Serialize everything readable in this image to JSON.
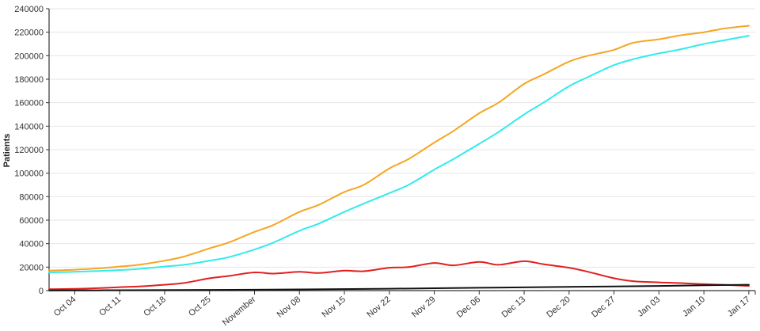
{
  "chart_data": {
    "type": "line",
    "title": "",
    "xlabel": "",
    "ylabel": "Patients",
    "ylim": [
      0,
      240000
    ],
    "y_ticks": [
      0,
      20000,
      40000,
      60000,
      80000,
      100000,
      120000,
      140000,
      160000,
      180000,
      200000,
      220000,
      240000
    ],
    "y_tick_labels": [
      "0",
      "20000",
      "40000",
      "60000",
      "80000",
      "100000",
      "120000",
      "140000",
      "160000",
      "180000",
      "200000",
      "220000",
      "240000"
    ],
    "x_range": [
      "2020-09-30",
      "2021-01-18"
    ],
    "x_ticks": [
      {
        "date": "2020-10-04",
        "label": "Oct 04"
      },
      {
        "date": "2020-10-11",
        "label": "Oct 11"
      },
      {
        "date": "2020-10-18",
        "label": "Oct 18"
      },
      {
        "date": "2020-10-25",
        "label": "Oct 25"
      },
      {
        "date": "2020-11-01",
        "label": "November"
      },
      {
        "date": "2020-11-08",
        "label": "Nov 08"
      },
      {
        "date": "2020-11-15",
        "label": "Nov 15"
      },
      {
        "date": "2020-11-22",
        "label": "Nov 22"
      },
      {
        "date": "2020-11-29",
        "label": "Nov 29"
      },
      {
        "date": "2020-12-06",
        "label": "Dec 06"
      },
      {
        "date": "2020-12-13",
        "label": "Dec 13"
      },
      {
        "date": "2020-12-20",
        "label": "Dec 20"
      },
      {
        "date": "2020-12-27",
        "label": "Dec 27"
      },
      {
        "date": "2021-01-03",
        "label": "Jan 03"
      },
      {
        "date": "2021-01-10",
        "label": "Jan 10"
      },
      {
        "date": "2021-01-17",
        "label": "Jan 17"
      }
    ],
    "grid": true,
    "series": [
      {
        "color": "#f5a623",
        "points": [
          [
            "2020-09-30",
            17000
          ],
          [
            "2020-10-04",
            17800
          ],
          [
            "2020-10-08",
            19000
          ],
          [
            "2020-10-11",
            20500
          ],
          [
            "2020-10-14",
            22000
          ],
          [
            "2020-10-18",
            25500
          ],
          [
            "2020-10-21",
            29000
          ],
          [
            "2020-10-25",
            36000
          ],
          [
            "2020-10-28",
            41000
          ],
          [
            "2020-11-01",
            50000
          ],
          [
            "2020-11-04",
            56000
          ],
          [
            "2020-11-08",
            67000
          ],
          [
            "2020-11-11",
            73000
          ],
          [
            "2020-11-15",
            84000
          ],
          [
            "2020-11-18",
            90000
          ],
          [
            "2020-11-22",
            104000
          ],
          [
            "2020-11-25",
            112000
          ],
          [
            "2020-11-29",
            126000
          ],
          [
            "2020-12-02",
            136000
          ],
          [
            "2020-12-06",
            151000
          ],
          [
            "2020-12-09",
            160000
          ],
          [
            "2020-12-13",
            176000
          ],
          [
            "2020-12-16",
            184000
          ],
          [
            "2020-12-20",
            195000
          ],
          [
            "2020-12-23",
            200000
          ],
          [
            "2020-12-27",
            205000
          ],
          [
            "2020-12-30",
            211000
          ],
          [
            "2021-01-03",
            214000
          ],
          [
            "2021-01-06",
            217000
          ],
          [
            "2021-01-10",
            220000
          ],
          [
            "2021-01-13",
            223000
          ],
          [
            "2021-01-17",
            225500
          ]
        ]
      },
      {
        "color": "#33ebeb",
        "points": [
          [
            "2020-09-30",
            15500
          ],
          [
            "2020-10-04",
            16000
          ],
          [
            "2020-10-08",
            16800
          ],
          [
            "2020-10-11",
            17500
          ],
          [
            "2020-10-14",
            18500
          ],
          [
            "2020-10-18",
            20500
          ],
          [
            "2020-10-21",
            22000
          ],
          [
            "2020-10-25",
            25500
          ],
          [
            "2020-10-28",
            28500
          ],
          [
            "2020-11-01",
            35000
          ],
          [
            "2020-11-04",
            41000
          ],
          [
            "2020-11-08",
            51000
          ],
          [
            "2020-11-11",
            57000
          ],
          [
            "2020-11-15",
            67000
          ],
          [
            "2020-11-18",
            74000
          ],
          [
            "2020-11-22",
            83000
          ],
          [
            "2020-11-25",
            90000
          ],
          [
            "2020-11-29",
            103000
          ],
          [
            "2020-12-02",
            112000
          ],
          [
            "2020-12-06",
            125000
          ],
          [
            "2020-12-09",
            135000
          ],
          [
            "2020-12-13",
            150000
          ],
          [
            "2020-12-16",
            160000
          ],
          [
            "2020-12-20",
            174000
          ],
          [
            "2020-12-23",
            182000
          ],
          [
            "2020-12-27",
            192000
          ],
          [
            "2020-12-30",
            197000
          ],
          [
            "2021-01-03",
            202000
          ],
          [
            "2021-01-06",
            205000
          ],
          [
            "2021-01-10",
            210000
          ],
          [
            "2021-01-13",
            213000
          ],
          [
            "2021-01-17",
            217000
          ]
        ]
      },
      {
        "color": "#e02020",
        "points": [
          [
            "2020-09-30",
            1200
          ],
          [
            "2020-10-04",
            1500
          ],
          [
            "2020-10-08",
            2200
          ],
          [
            "2020-10-11",
            3000
          ],
          [
            "2020-10-14",
            3500
          ],
          [
            "2020-10-18",
            5000
          ],
          [
            "2020-10-21",
            6500
          ],
          [
            "2020-10-25",
            10500
          ],
          [
            "2020-10-28",
            12500
          ],
          [
            "2020-11-01",
            15500
          ],
          [
            "2020-11-04",
            14500
          ],
          [
            "2020-11-08",
            16000
          ],
          [
            "2020-11-11",
            15000
          ],
          [
            "2020-11-15",
            17000
          ],
          [
            "2020-11-18",
            16500
          ],
          [
            "2020-11-22",
            19500
          ],
          [
            "2020-11-25",
            20000
          ],
          [
            "2020-11-29",
            23500
          ],
          [
            "2020-12-02",
            21500
          ],
          [
            "2020-12-06",
            24500
          ],
          [
            "2020-12-09",
            22000
          ],
          [
            "2020-12-13",
            25000
          ],
          [
            "2020-12-16",
            22500
          ],
          [
            "2020-12-20",
            19500
          ],
          [
            "2020-12-23",
            16000
          ],
          [
            "2020-12-27",
            10500
          ],
          [
            "2020-12-30",
            8000
          ],
          [
            "2021-01-03",
            7000
          ],
          [
            "2021-01-06",
            6500
          ],
          [
            "2021-01-10",
            5500
          ],
          [
            "2021-01-13",
            5000
          ],
          [
            "2021-01-17",
            4000
          ]
        ]
      },
      {
        "color": "#111111",
        "points": [
          [
            "2020-09-30",
            200
          ],
          [
            "2020-10-11",
            350
          ],
          [
            "2020-10-25",
            600
          ],
          [
            "2020-11-08",
            1000
          ],
          [
            "2020-11-22",
            1600
          ],
          [
            "2020-12-06",
            2400
          ],
          [
            "2020-12-20",
            3200
          ],
          [
            "2021-01-03",
            4000
          ],
          [
            "2021-01-10",
            4500
          ],
          [
            "2021-01-17",
            5000
          ]
        ]
      }
    ]
  }
}
